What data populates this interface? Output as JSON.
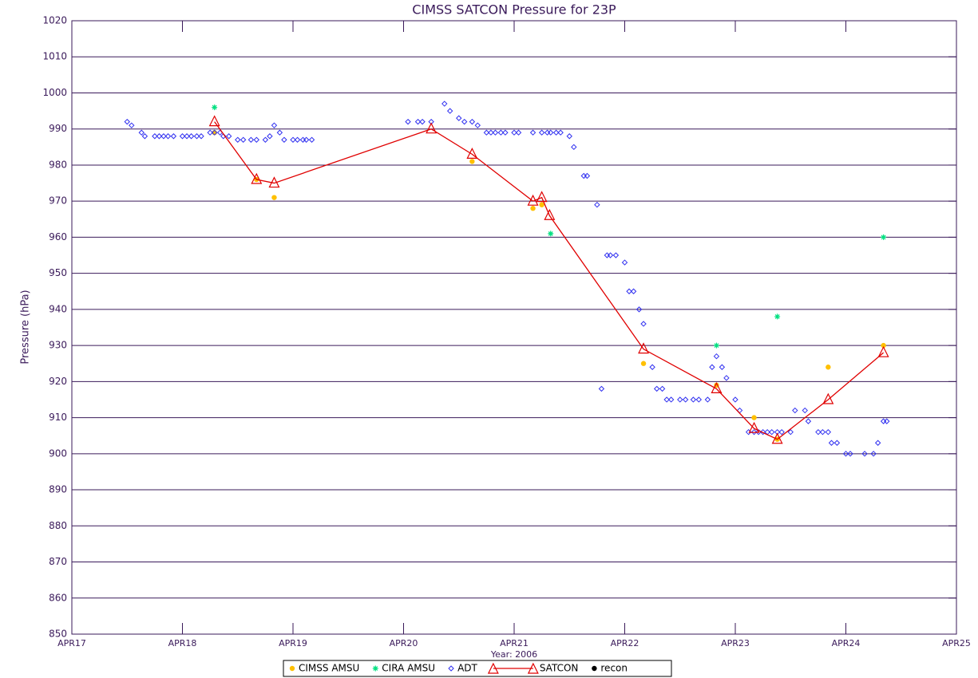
{
  "chart_data": {
    "type": "scatter",
    "title": "CIMSS SATCON Pressure for 23P",
    "x_label": "Year: 2006",
    "y_label": "Pressure (hPa)",
    "xlim": [
      17,
      25
    ],
    "xticks": [
      {
        "value": 17,
        "label": "APR17"
      },
      {
        "value": 18,
        "label": "APR18"
      },
      {
        "value": 19,
        "label": "APR19"
      },
      {
        "value": 20,
        "label": "APR20"
      },
      {
        "value": 21,
        "label": "APR21"
      },
      {
        "value": 22,
        "label": "APR22"
      },
      {
        "value": 23,
        "label": "APR23"
      },
      {
        "value": 24,
        "label": "APR24"
      },
      {
        "value": 25,
        "label": "APR25"
      }
    ],
    "ylim": [
      850,
      1020
    ],
    "yticks": [
      850,
      860,
      870,
      880,
      890,
      900,
      910,
      920,
      930,
      940,
      950,
      960,
      970,
      980,
      990,
      1000,
      1010,
      1020
    ],
    "grid": true,
    "legend": "bottom",
    "series": [
      {
        "name": "CIMSS AMSU",
        "color": "#ffc000",
        "marker": "dot",
        "x": [
          18.29,
          18.67,
          18.83,
          20.62,
          21.17,
          21.25,
          22.17,
          22.83,
          23.17,
          23.38,
          23.84,
          24.34
        ],
        "values": [
          989,
          976,
          971,
          981,
          968,
          969,
          925,
          919,
          910,
          904,
          924,
          930
        ]
      },
      {
        "name": "CIRA AMSU",
        "color": "#00e080",
        "marker": "star",
        "x": [
          18.29,
          21.33,
          22.83,
          23.38,
          24.34
        ],
        "values": [
          996,
          961,
          930,
          938,
          960
        ]
      },
      {
        "name": "ADT",
        "color": "#3030f0",
        "marker": "diamond",
        "x": [
          17.5,
          17.54,
          17.63,
          17.66,
          17.75,
          17.79,
          17.83,
          17.87,
          17.92,
          18.0,
          18.04,
          18.08,
          18.13,
          18.17,
          18.25,
          18.29,
          18.34,
          18.37,
          18.42,
          18.5,
          18.55,
          18.62,
          18.67,
          18.75,
          18.79,
          18.83,
          18.88,
          18.92,
          19.0,
          19.04,
          19.09,
          19.12,
          19.17,
          20.04,
          20.13,
          20.17,
          20.25,
          20.37,
          20.42,
          20.5,
          20.55,
          20.62,
          20.67,
          20.75,
          20.79,
          20.83,
          20.88,
          20.92,
          21.0,
          21.04,
          21.17,
          21.25,
          21.3,
          21.33,
          21.38,
          21.42,
          21.5,
          21.54,
          21.63,
          21.66,
          21.75,
          21.79,
          21.84,
          21.87,
          21.92,
          22.0,
          22.04,
          22.08,
          22.13,
          22.17,
          22.25,
          22.29,
          22.34,
          22.38,
          22.42,
          22.5,
          22.55,
          22.62,
          22.67,
          22.75,
          22.79,
          22.83,
          22.88,
          22.92,
          23.0,
          23.04,
          23.12,
          23.17,
          23.21,
          23.25,
          23.29,
          23.33,
          23.38,
          23.42,
          23.5,
          23.54,
          23.63,
          23.66,
          23.75,
          23.79,
          23.84,
          23.87,
          23.92,
          24.0,
          24.04,
          24.17,
          24.25,
          24.29,
          24.34,
          24.37
        ],
        "values": [
          992,
          991,
          989,
          988,
          988,
          988,
          988,
          988,
          988,
          988,
          988,
          988,
          988,
          988,
          989,
          989,
          989,
          988,
          988,
          987,
          987,
          987,
          987,
          987,
          988,
          991,
          989,
          987,
          987,
          987,
          987,
          987,
          987,
          992,
          992,
          992,
          992,
          997,
          995,
          993,
          992,
          992,
          991,
          989,
          989,
          989,
          989,
          989,
          989,
          989,
          989,
          989,
          989,
          989,
          989,
          989,
          988,
          985,
          977,
          977,
          969,
          918,
          955,
          955,
          955,
          953,
          945,
          945,
          940,
          936,
          924,
          918,
          918,
          915,
          915,
          915,
          915,
          915,
          915,
          915,
          924,
          927,
          924,
          921,
          915,
          912,
          906,
          906,
          906,
          906,
          906,
          906,
          906,
          906,
          906,
          912,
          912,
          909,
          906,
          906,
          906,
          903,
          903,
          900,
          900,
          900,
          900,
          903,
          909,
          909
        ]
      },
      {
        "name": "SATCON",
        "color": "#e00000",
        "marker": "triangle",
        "line": true,
        "x": [
          18.29,
          18.67,
          18.83,
          20.25,
          20.62,
          21.17,
          21.25,
          21.32,
          22.17,
          22.83,
          23.17,
          23.38,
          23.84,
          24.34
        ],
        "values": [
          992,
          976,
          975,
          990,
          983,
          970,
          971,
          966,
          929,
          918,
          907,
          904,
          915,
          928
        ]
      },
      {
        "name": "recon",
        "color": "#000000",
        "marker": "dot",
        "x": [],
        "values": []
      }
    ]
  }
}
